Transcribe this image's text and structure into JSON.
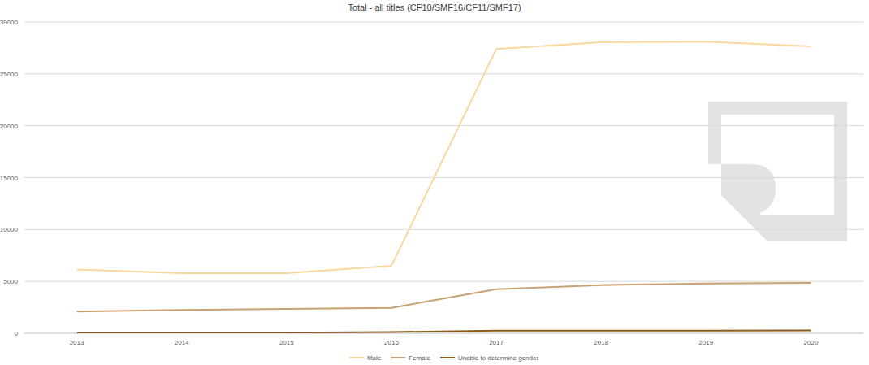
{
  "chart_data": {
    "type": "line",
    "title": "Total - all titles (CF10/SMF16/CF11/SMF17)",
    "categories": [
      "2013",
      "2014",
      "2015",
      "2016",
      "2017",
      "2018",
      "2019",
      "2020"
    ],
    "series": [
      {
        "name": "Male",
        "color": "#f8d7a0",
        "values": [
          6150,
          5800,
          5800,
          6500,
          27400,
          28050,
          28100,
          27650
        ]
      },
      {
        "name": "Female",
        "color": "#c9a274",
        "values": [
          2100,
          2250,
          2350,
          2450,
          4250,
          4650,
          4800,
          4850
        ]
      },
      {
        "name": "Unable to determine gender",
        "color": "#8c5b1c",
        "values": [
          50,
          50,
          60,
          120,
          250,
          260,
          250,
          270
        ]
      }
    ],
    "ylim": [
      0,
      30000
    ],
    "yticks": [
      0,
      5000,
      10000,
      15000,
      20000,
      25000,
      30000
    ],
    "grid": true,
    "legend": "bottom"
  }
}
